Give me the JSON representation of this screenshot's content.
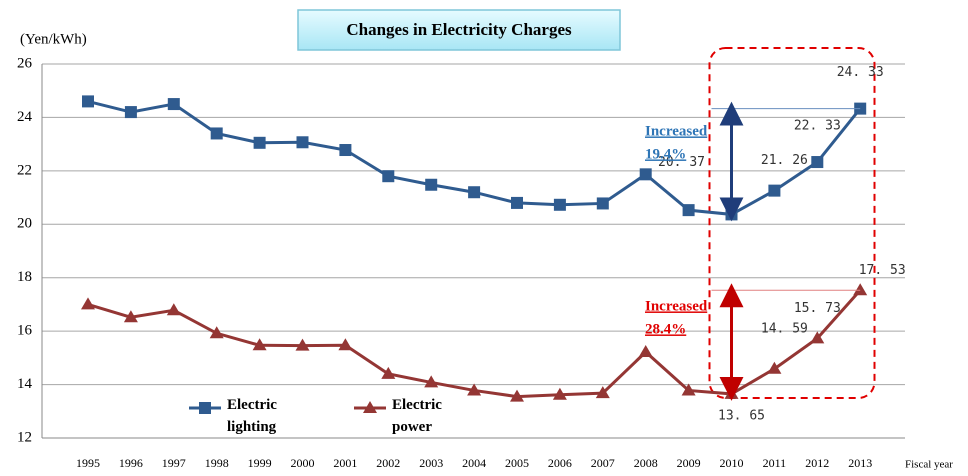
{
  "chart_data": {
    "type": "line",
    "title": "Changes in Electricity Charges",
    "y_label": "(Yen/kWh)",
    "x_label": "Fiscal year",
    "categories": [
      "1995",
      "1996",
      "1997",
      "1998",
      "1999",
      "2000",
      "2001",
      "2002",
      "2003",
      "2004",
      "2005",
      "2006",
      "2007",
      "2008",
      "2009",
      "2010",
      "2011",
      "2012",
      "2013"
    ],
    "ylim": [
      12,
      26
    ],
    "yticks": [
      12,
      14,
      16,
      18,
      20,
      22,
      24,
      26
    ],
    "grid": true,
    "series": [
      {
        "name": "Electric lighting",
        "color": "#2f5b8f",
        "marker": "square",
        "values": [
          24.6,
          24.2,
          24.5,
          23.4,
          23.05,
          23.07,
          22.78,
          21.8,
          21.48,
          21.2,
          20.8,
          20.73,
          20.78,
          21.87,
          20.53,
          20.37,
          21.26,
          22.33,
          24.33
        ],
        "value_labels": [
          null,
          null,
          null,
          null,
          null,
          null,
          null,
          null,
          null,
          null,
          null,
          null,
          null,
          null,
          null,
          "20. 37",
          "21. 26",
          "22. 33",
          "24. 33"
        ]
      },
      {
        "name": "Electric power",
        "color": "#943634",
        "marker": "triangle",
        "values": [
          17.0,
          16.52,
          16.78,
          15.92,
          15.47,
          15.46,
          15.47,
          14.4,
          14.08,
          13.78,
          13.55,
          13.62,
          13.68,
          15.22,
          13.78,
          13.65,
          14.59,
          15.73,
          17.53
        ],
        "value_labels": [
          null,
          null,
          null,
          null,
          null,
          null,
          null,
          null,
          null,
          null,
          null,
          null,
          null,
          null,
          null,
          "13. 65",
          "14. 59",
          "15. 73",
          "17. 53"
        ]
      }
    ],
    "annotations": [
      {
        "lines": [
          "Increased",
          "19.4%"
        ],
        "color": "#2e75b6"
      },
      {
        "lines": [
          "Increased",
          "28.4%"
        ],
        "color": "#e00000"
      }
    ]
  }
}
